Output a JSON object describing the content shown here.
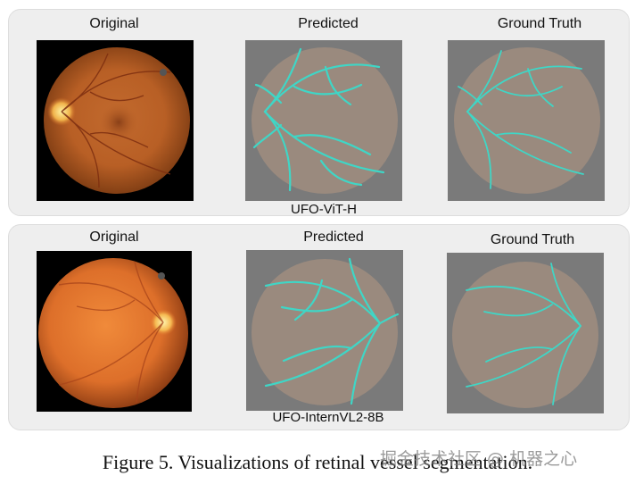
{
  "rows": [
    {
      "model": "UFO-ViT-H",
      "columns": [
        {
          "title": "Original",
          "kind": "fundus-original"
        },
        {
          "title": "Predicted",
          "kind": "vessel-predicted"
        },
        {
          "title": "Ground Truth",
          "kind": "vessel-ground-truth"
        }
      ]
    },
    {
      "model": "UFO-InternVL2-8B",
      "columns": [
        {
          "title": "Original",
          "kind": "fundus-original"
        },
        {
          "title": "Predicted",
          "kind": "vessel-predicted"
        },
        {
          "title": "Ground Truth",
          "kind": "vessel-ground-truth"
        }
      ]
    }
  ],
  "caption": "Figure 5. Visualizations of retinal vessel segmentation.",
  "watermark": "掘金技术社区 @ 机器之心",
  "colors": {
    "vessel": "#3fd6c6",
    "segmentation_background": "#7a7a7a",
    "fundus_disk": "#9a8a7e",
    "fundus_orange": "#d06a28",
    "panel": "#eeeeee"
  }
}
